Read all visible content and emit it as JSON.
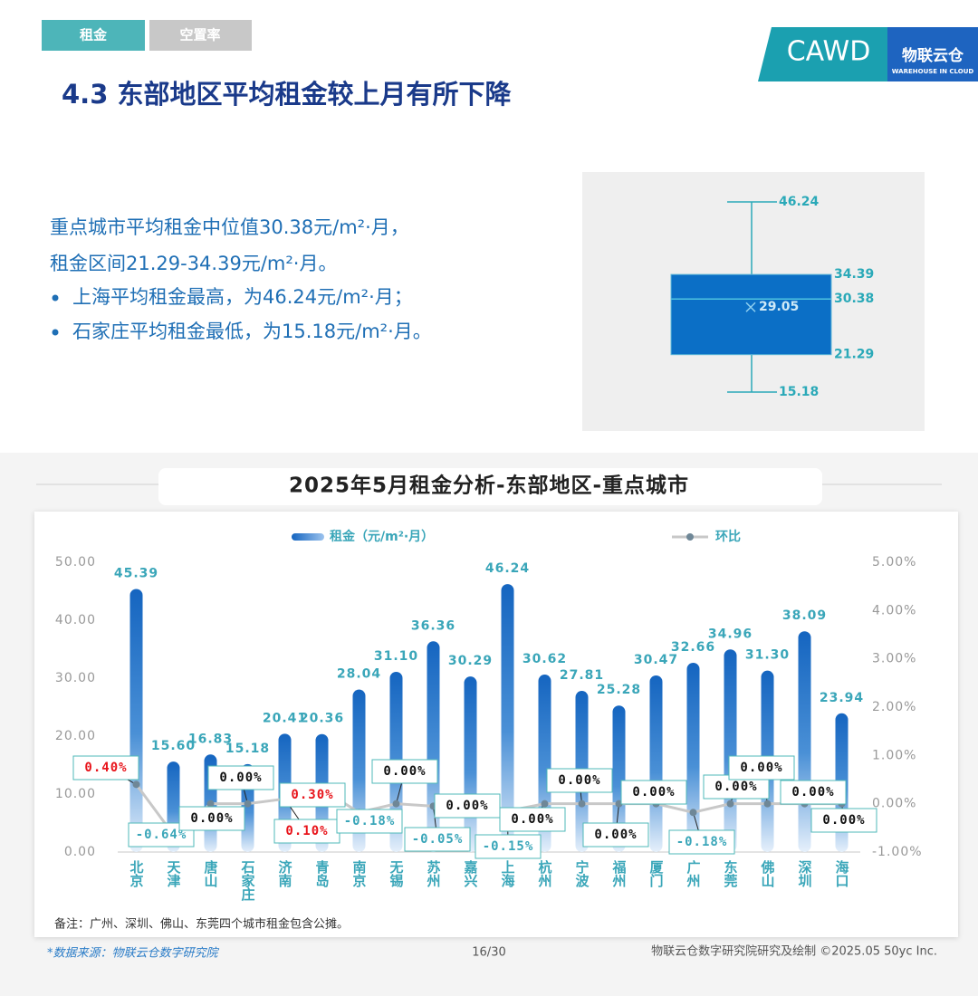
{
  "tabs": [
    "租金",
    "空置率"
  ],
  "logo": {
    "name": "CAWD",
    "brand": "物联云仓",
    "brand_en": "WAREHOUSE IN CLOUD"
  },
  "title": "4.3 东部地区平均租金较上月有所下降",
  "summary": [
    "重点城市平均租金中位值30.38元/m²·月，",
    "租金区间21.29-34.39元/m²·月。",
    "上海平均租金最高，为46.24元/m²·月；",
    "石家庄平均租金最低，为15.18元/m²·月。"
  ],
  "chart_data": [
    {
      "type": "box",
      "min": 15.18,
      "q1": 21.29,
      "median": 30.38,
      "q3": 34.39,
      "max": 46.24,
      "mean": 29.05,
      "color": "#0b6fc6"
    },
    {
      "type": "bar_line",
      "title": "2025年5月租金分析-东部地区-重点城市",
      "categories": [
        "北京",
        "天津",
        "唐山",
        "石家庄",
        "济南",
        "青岛",
        "南京",
        "无锡",
        "苏州",
        "嘉兴",
        "上海",
        "杭州",
        "宁波",
        "福州",
        "厦门",
        "广州",
        "东莞",
        "佛山",
        "深圳",
        "海口"
      ],
      "series": [
        {
          "name": "租金（元/m²·月）",
          "type": "bar",
          "color": "#1565c0",
          "values": [
            45.39,
            15.6,
            16.83,
            15.18,
            20.41,
            20.36,
            28.04,
            31.1,
            36.36,
            30.29,
            46.24,
            30.62,
            27.81,
            25.28,
            30.47,
            32.66,
            34.96,
            31.3,
            38.09,
            23.94
          ],
          "value_labels": [
            "45.39",
            "15.60",
            "16.83",
            "15.18",
            "20.41",
            "20.36",
            "28.04",
            "31.10",
            "36.36",
            "30.29",
            "46.24",
            "30.62",
            "27.81",
            "25.28",
            "30.47",
            "32.66",
            "34.96",
            "31.30",
            "38.09",
            "23.94"
          ]
        },
        {
          "name": "环比",
          "type": "line",
          "axis": "y2",
          "color": "#c8c8c8",
          "values": [
            0.4,
            -0.64,
            0,
            0,
            0.1,
            0.3,
            -0.18,
            0,
            -0.05,
            0,
            -0.15,
            0,
            0,
            0,
            0,
            -0.18,
            0,
            0,
            0,
            0
          ],
          "value_labels": [
            "0.40%",
            "-0.64%",
            "0.00%",
            "0.00%",
            "0.10%",
            "0.30%",
            "-0.18%",
            "0.00%",
            "-0.05%",
            "0.00%",
            "-0.15%",
            "0.00%",
            "0.00%",
            "0.00%",
            "0.00%",
            "-0.18%",
            "0.00%",
            "0.00%",
            "0.00%",
            "0.00%"
          ]
        }
      ],
      "ylim": [
        0,
        50
      ],
      "yticks": [
        {
          "value": 0,
          "label": "0.00"
        },
        {
          "value": 10,
          "label": "10.00"
        },
        {
          "value": 20,
          "label": "20.00"
        },
        {
          "value": 30,
          "label": "30.00"
        },
        {
          "value": 40,
          "label": "40.00"
        },
        {
          "value": 50,
          "label": "50.00"
        }
      ],
      "y2lim": [
        -1,
        5
      ],
      "y2ticks": [
        {
          "value": -1,
          "label": "-1.00%"
        },
        {
          "value": 0,
          "label": "0.00%"
        },
        {
          "value": 1,
          "label": "1.00%"
        },
        {
          "value": 2,
          "label": "2.00%"
        },
        {
          "value": 3,
          "label": "3.00%"
        },
        {
          "value": 4,
          "label": "4.00%"
        },
        {
          "value": 5,
          "label": "5.00%"
        }
      ],
      "grid": false
    }
  ],
  "note": "备注：广州、深圳、佛山、东莞四个城市租金包含公摊。",
  "footer": {
    "source": "*数据来源：物联云仓数字研究院",
    "page": "16/30",
    "credit": "物联云仓数字研究院研究及绘制   ©2025.05 50yc Inc."
  }
}
